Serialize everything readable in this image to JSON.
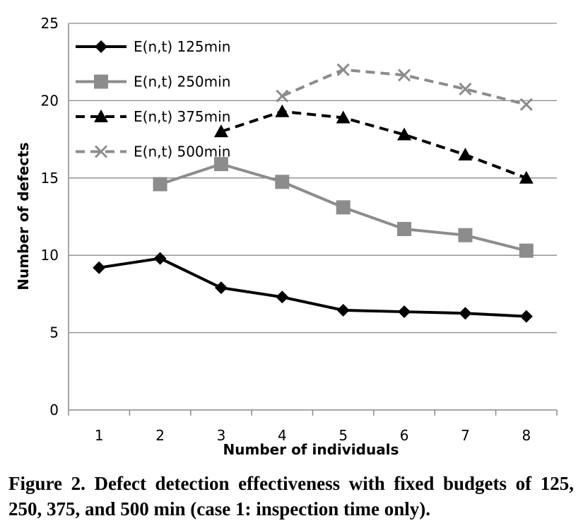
{
  "chart_data": {
    "type": "line",
    "xlabel": "Number of individuals",
    "ylabel": "Number of defects",
    "x": [
      1,
      2,
      3,
      4,
      5,
      6,
      7,
      8
    ],
    "ylim": [
      0,
      25
    ],
    "yticks": [
      0,
      5,
      10,
      15,
      20,
      25
    ],
    "grid": "horizontal",
    "legend_position": "top-left",
    "series": [
      {
        "name": "E(n,t) 125min",
        "color": "#000000",
        "dash": "solid",
        "marker": "diamond",
        "values": [
          9.2,
          9.8,
          7.9,
          7.3,
          6.45,
          6.35,
          6.25,
          6.05
        ]
      },
      {
        "name": "E(n,t) 250min",
        "color": "#8c8c8c",
        "dash": "solid",
        "marker": "square",
        "values": [
          null,
          14.6,
          15.9,
          14.75,
          13.1,
          11.7,
          11.3,
          10.3
        ]
      },
      {
        "name": "E(n,t) 375min",
        "color": "#000000",
        "dash": "dashed",
        "marker": "triangle",
        "values": [
          null,
          null,
          18.0,
          19.3,
          18.9,
          17.8,
          16.5,
          15.0
        ]
      },
      {
        "name": "E(n,t) 500min",
        "color": "#8c8c8c",
        "dash": "dashed",
        "marker": "cross",
        "values": [
          null,
          null,
          null,
          20.3,
          22.0,
          21.65,
          20.75,
          19.75
        ]
      }
    ]
  },
  "caption": "Figure 2. Defect detection effectiveness with fixed budgets of 125, 250, 375, and 500 min (case 1: inspection time only)."
}
